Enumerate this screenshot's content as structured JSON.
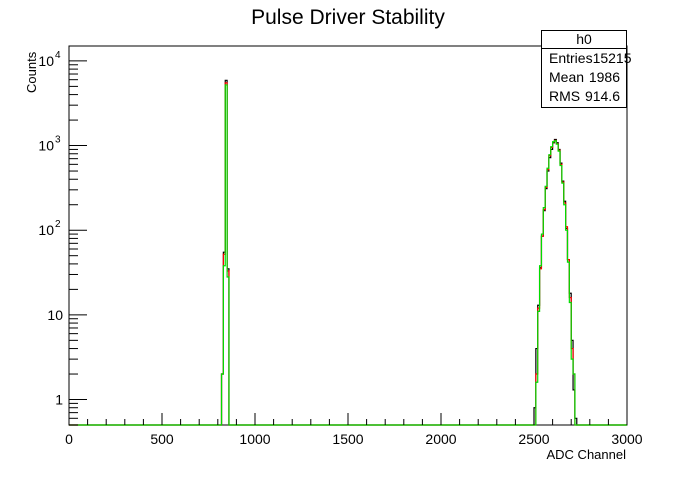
{
  "chart_data": {
    "type": "histogram",
    "title": "Pulse Driver Stability",
    "xlabel": "ADC Channel",
    "ylabel": "Counts",
    "xlim": [
      0,
      3000
    ],
    "ylim": [
      0.5,
      15000
    ],
    "yscale": "log",
    "grid": false,
    "legend": "none",
    "x_tick_labels": [
      "0",
      "500",
      "1000",
      "1500",
      "2000",
      "2500",
      "3000"
    ],
    "y_tick_labels": [
      {
        "value": 1,
        "label": "1"
      },
      {
        "value": 10,
        "label": "10"
      },
      {
        "value": 100,
        "base": "10",
        "exp": "2"
      },
      {
        "value": 1000,
        "base": "10",
        "exp": "3"
      },
      {
        "value": 10000,
        "base": "10",
        "exp": "4"
      }
    ],
    "bin_width": 10,
    "series": [
      {
        "color": "#000000",
        "bins": [
          [
            820,
            2
          ],
          [
            830,
            55
          ],
          [
            840,
            5900
          ],
          [
            850,
            35
          ],
          [
            2500,
            0.8
          ],
          [
            2510,
            4
          ],
          [
            2520,
            13
          ],
          [
            2530,
            36
          ],
          [
            2540,
            85
          ],
          [
            2550,
            170
          ],
          [
            2560,
            310
          ],
          [
            2570,
            500
          ],
          [
            2580,
            720
          ],
          [
            2590,
            900
          ],
          [
            2600,
            1080
          ],
          [
            2610,
            1180
          ],
          [
            2620,
            1080
          ],
          [
            2630,
            900
          ],
          [
            2640,
            620
          ],
          [
            2650,
            380
          ],
          [
            2660,
            220
          ],
          [
            2670,
            105
          ],
          [
            2680,
            45
          ],
          [
            2690,
            18
          ],
          [
            2700,
            5
          ],
          [
            2710,
            1.3
          ],
          [
            2720,
            0.6
          ]
        ]
      },
      {
        "color": "#ff0000",
        "bins": [
          [
            820,
            2
          ],
          [
            830,
            52
          ],
          [
            840,
            5500
          ],
          [
            850,
            33
          ],
          [
            2510,
            2
          ],
          [
            2520,
            12
          ],
          [
            2530,
            35
          ],
          [
            2540,
            85
          ],
          [
            2550,
            175
          ],
          [
            2560,
            320
          ],
          [
            2570,
            520
          ],
          [
            2580,
            760
          ],
          [
            2590,
            950
          ],
          [
            2600,
            1100
          ],
          [
            2610,
            1150
          ],
          [
            2620,
            1050
          ],
          [
            2630,
            880
          ],
          [
            2640,
            600
          ],
          [
            2650,
            370
          ],
          [
            2660,
            210
          ],
          [
            2670,
            110
          ],
          [
            2680,
            45
          ],
          [
            2690,
            16
          ],
          [
            2700,
            4
          ],
          [
            2710,
            2
          ]
        ]
      },
      {
        "color": "#00dd00",
        "bins": [
          [
            820,
            2
          ],
          [
            830,
            38
          ],
          [
            840,
            5200
          ],
          [
            850,
            28
          ],
          [
            2510,
            1.6
          ],
          [
            2520,
            11
          ],
          [
            2530,
            38
          ],
          [
            2540,
            90
          ],
          [
            2550,
            185
          ],
          [
            2560,
            330
          ],
          [
            2570,
            540
          ],
          [
            2580,
            780
          ],
          [
            2590,
            970
          ],
          [
            2600,
            1110
          ],
          [
            2610,
            1140
          ],
          [
            2620,
            1040
          ],
          [
            2630,
            860
          ],
          [
            2640,
            580
          ],
          [
            2650,
            360
          ],
          [
            2660,
            200
          ],
          [
            2670,
            100
          ],
          [
            2680,
            42
          ],
          [
            2690,
            14
          ],
          [
            2700,
            3
          ],
          [
            2710,
            2
          ]
        ]
      }
    ]
  },
  "stats": {
    "title": "h0",
    "rows": [
      {
        "label": "Entries",
        "value": "15215"
      },
      {
        "label": "Mean",
        "value": "1986"
      },
      {
        "label": "RMS",
        "value": "914.6"
      }
    ]
  }
}
